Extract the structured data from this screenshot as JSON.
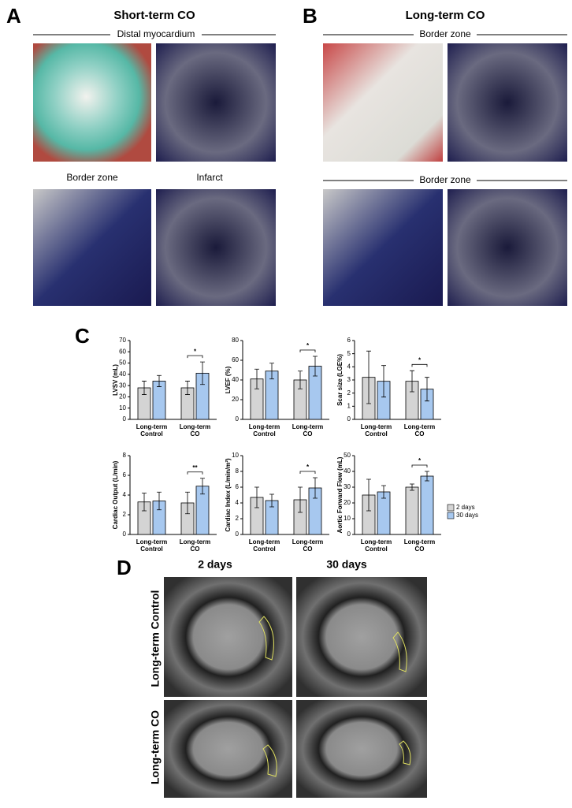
{
  "panel_labels": [
    "A",
    "B",
    "C",
    "D"
  ],
  "panel_a": {
    "title": "Short-term CO",
    "section": "Distal myocardium",
    "image_labels": [
      "Border zone",
      "Infarct"
    ]
  },
  "panel_b": {
    "title": "Long-term CO",
    "sections": [
      "Border zone",
      "Border zone"
    ]
  },
  "panel_d": {
    "columns": [
      "2 days",
      "30 days"
    ],
    "rows": [
      "Long-term Control",
      "Long-term CO"
    ]
  },
  "chart_data": [
    {
      "type": "bar",
      "y_label": "LVSV (mL)",
      "categories": [
        "Long-term Control",
        "Long-term CO"
      ],
      "ylim": [
        0,
        70
      ],
      "yticks": [
        0,
        10,
        20,
        30,
        40,
        50,
        60,
        70
      ],
      "significance": [
        null,
        "*"
      ],
      "series": [
        {
          "name": "2 days",
          "color": "#d4d4d4",
          "values": [
            28,
            28
          ],
          "errors": [
            6,
            6
          ]
        },
        {
          "name": "30 days",
          "color": "#a7c8ef",
          "values": [
            34,
            41
          ],
          "errors": [
            5,
            10
          ]
        }
      ]
    },
    {
      "type": "bar",
      "y_label": "LVEF (%)",
      "categories": [
        "Long-term Control",
        "Long-term CO"
      ],
      "ylim": [
        0,
        80
      ],
      "yticks": [
        0,
        20,
        40,
        60,
        80
      ],
      "significance": [
        null,
        "*"
      ],
      "series": [
        {
          "name": "2 days",
          "color": "#d4d4d4",
          "values": [
            41,
            40
          ],
          "errors": [
            10,
            9
          ]
        },
        {
          "name": "30 days",
          "color": "#a7c8ef",
          "values": [
            49,
            54
          ],
          "errors": [
            8,
            10
          ]
        }
      ]
    },
    {
      "type": "bar",
      "y_label": "Scar size (LGE%)",
      "categories": [
        "Long-term Control",
        "Long-term CO"
      ],
      "ylim": [
        0,
        6
      ],
      "yticks": [
        0,
        1,
        2,
        3,
        4,
        5,
        6
      ],
      "significance": [
        null,
        "*"
      ],
      "series": [
        {
          "name": "2 days",
          "color": "#d4d4d4",
          "values": [
            3.2,
            2.9
          ],
          "errors": [
            2,
            0.8
          ]
        },
        {
          "name": "30 days",
          "color": "#a7c8ef",
          "values": [
            2.9,
            2.3
          ],
          "errors": [
            1.2,
            0.9
          ]
        }
      ]
    },
    {
      "type": "bar",
      "y_label": "Cardiac Output (L/min)",
      "categories": [
        "Long-term Control",
        "Long-term CO"
      ],
      "ylim": [
        0,
        8
      ],
      "yticks": [
        0,
        2,
        4,
        6,
        8
      ],
      "significance": [
        null,
        "**"
      ],
      "series": [
        {
          "name": "2 days",
          "color": "#d4d4d4",
          "values": [
            3.3,
            3.2
          ],
          "errors": [
            0.9,
            1.1
          ]
        },
        {
          "name": "30 days",
          "color": "#a7c8ef",
          "values": [
            3.4,
            4.9
          ],
          "errors": [
            0.9,
            0.8
          ]
        }
      ]
    },
    {
      "type": "bar",
      "y_label": "Cardiac Index (L/min/m²)",
      "categories": [
        "Long-term Control",
        "Long-term CO"
      ],
      "ylim": [
        0,
        10
      ],
      "yticks": [
        0,
        2,
        4,
        6,
        8,
        10
      ],
      "significance": [
        null,
        "*"
      ],
      "series": [
        {
          "name": "2 days",
          "color": "#d4d4d4",
          "values": [
            4.7,
            4.4
          ],
          "errors": [
            1.3,
            1.6
          ]
        },
        {
          "name": "30 days",
          "color": "#a7c8ef",
          "values": [
            4.3,
            5.9
          ],
          "errors": [
            0.8,
            1.3
          ]
        }
      ]
    },
    {
      "type": "bar",
      "y_label": "Aortic Forward Flow (mL)",
      "categories": [
        "Long-term Control",
        "Long-term CO"
      ],
      "ylim": [
        0,
        50
      ],
      "yticks": [
        0,
        10,
        20,
        30,
        40,
        50
      ],
      "significance": [
        null,
        "*"
      ],
      "legend": "right",
      "series": [
        {
          "name": "2 days",
          "color": "#d4d4d4",
          "values": [
            25,
            30
          ],
          "errors": [
            10,
            2
          ]
        },
        {
          "name": "30 days",
          "color": "#a7c8ef",
          "values": [
            27,
            37
          ],
          "errors": [
            4,
            3
          ]
        }
      ]
    }
  ]
}
